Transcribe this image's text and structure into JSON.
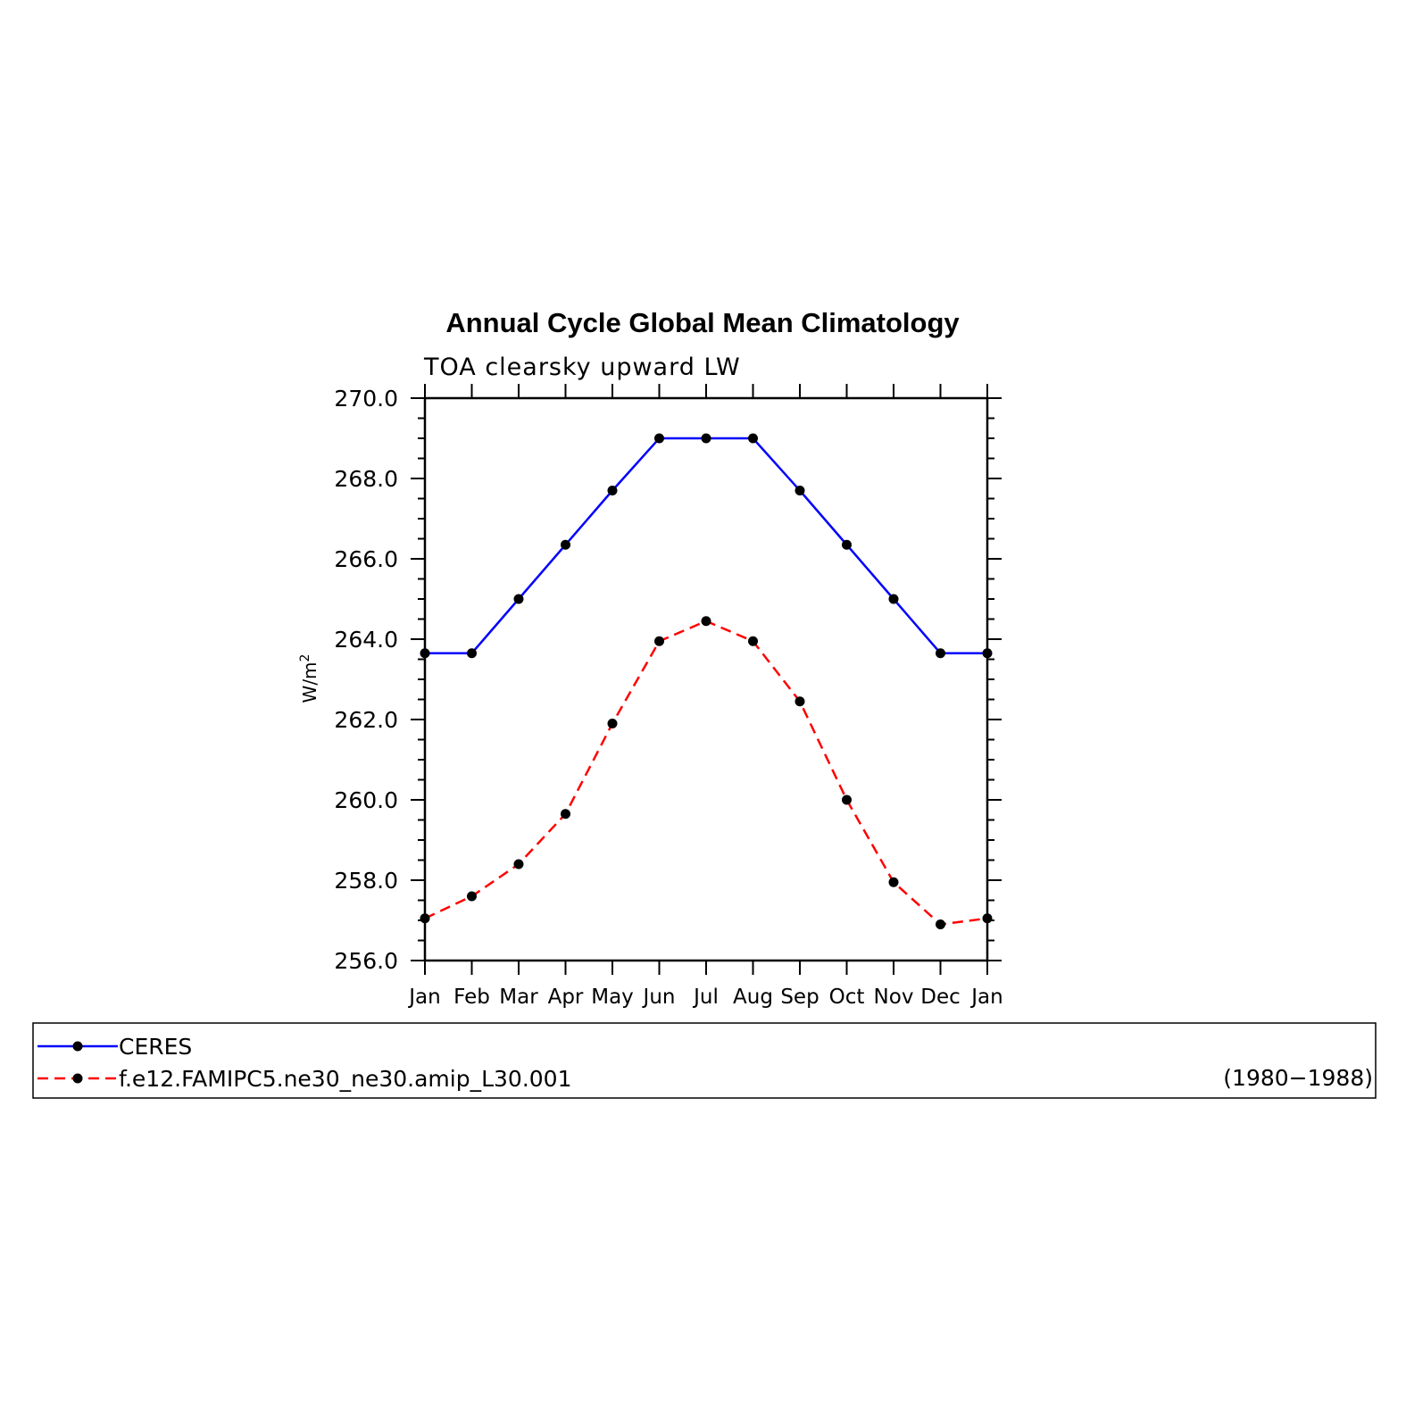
{
  "chart_data": {
    "type": "line",
    "title": "Annual Cycle Global Mean Climatology",
    "subtitle": "TOA clearsky upward LW",
    "ylabel_base": "W/m",
    "ylabel_superscript": "2",
    "ylim": [
      256.0,
      270.0
    ],
    "ytick_labels": [
      "256.0",
      "258.0",
      "260.0",
      "262.0",
      "264.0",
      "266.0",
      "268.0",
      "270.0"
    ],
    "yticks": [
      256,
      258,
      260,
      262,
      264,
      266,
      268,
      270
    ],
    "categories": [
      "Jan",
      "Feb",
      "Mar",
      "Apr",
      "May",
      "Jun",
      "Jul",
      "Aug",
      "Sep",
      "Oct",
      "Nov",
      "Dec",
      "Jan"
    ],
    "series": [
      {
        "name": "CERES",
        "color": "#0000ff",
        "dashed": false,
        "values": [
          263.65,
          263.65,
          265.0,
          266.35,
          267.7,
          269.0,
          269.0,
          269.0,
          267.7,
          266.35,
          265.0,
          263.65,
          263.65
        ]
      },
      {
        "name": "f.e12.FAMIPC5.ne30_ne30.amip_L30.001",
        "color": "#ff0000",
        "dashed": true,
        "values": [
          257.05,
          257.6,
          258.4,
          259.65,
          261.9,
          263.95,
          264.45,
          263.95,
          262.45,
          260.0,
          257.95,
          256.9,
          257.05
        ]
      }
    ],
    "grid": false,
    "legend_position": "bottom",
    "legend_note": "(1980−1988)",
    "marker_color": "#000000"
  }
}
